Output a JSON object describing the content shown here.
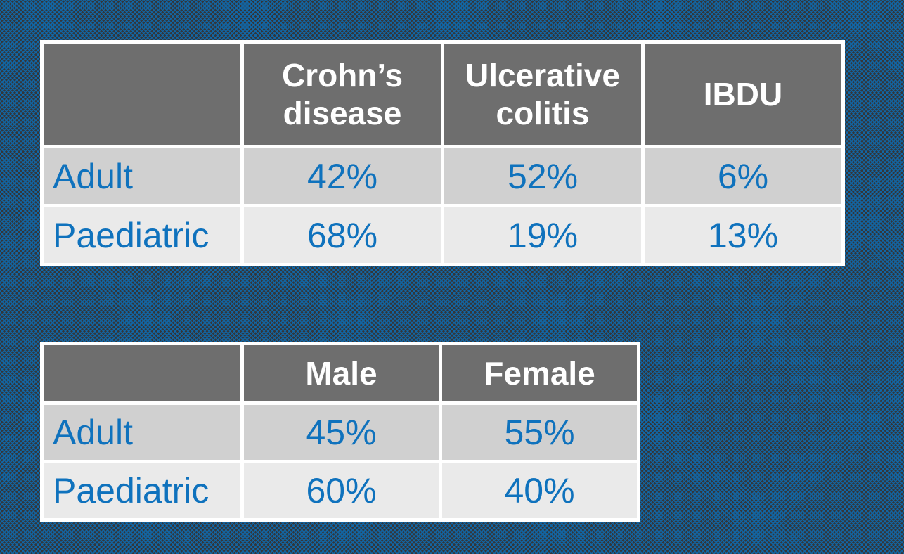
{
  "slide": {
    "background_base_color": "#33363a",
    "background_pattern": "blue diagonal diamond crosshatch",
    "background_pattern_color": "#1068a9"
  },
  "colors": {
    "header_bg": "#6e6e6e",
    "header_text": "#ffffff",
    "row_band_dark": "#d0d0d0",
    "row_band_light": "#eaeaea",
    "cell_text_blue": "#0f72bd",
    "grid_border": "#ffffff"
  },
  "tables": [
    {
      "name": "ibd-type-distribution",
      "columns": [
        "",
        "Crohn’s disease",
        "Ulcerative colitis",
        "IBDU"
      ],
      "rows": [
        {
          "label": "Adult",
          "values": [
            "42%",
            "52%",
            "6%"
          ]
        },
        {
          "label": "Paediatric",
          "values": [
            "68%",
            "19%",
            "13%"
          ]
        }
      ]
    },
    {
      "name": "gender-distribution",
      "columns": [
        "",
        "Male",
        "Female"
      ],
      "rows": [
        {
          "label": "Adult",
          "values": [
            "45%",
            "55%"
          ]
        },
        {
          "label": "Paediatric",
          "values": [
            "60%",
            "40%"
          ]
        }
      ]
    }
  ]
}
